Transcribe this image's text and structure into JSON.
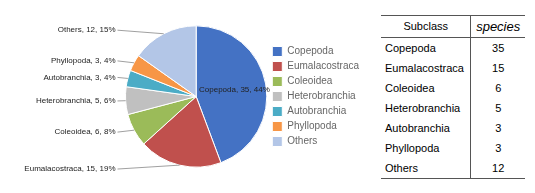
{
  "chart_data": [
    {
      "type": "pie",
      "categories": [
        "Copepoda",
        "Eumalacostraca",
        "Coleoidea",
        "Heterobranchia",
        "Autobranchia",
        "Phyllopoda",
        "Others"
      ],
      "values": [
        35,
        15,
        6,
        5,
        3,
        3,
        12
      ],
      "value_labels": [
        "Copepoda, 35, 44%",
        "Eumalacostraca, 15, 19%",
        "Coleoidea, 6, 8%",
        "Heterobranchia, 5, 6%",
        "Autobranchia, 3, 4%",
        "Phyllopoda, 3, 4%",
        "Others, 12, 15%"
      ],
      "colors": [
        "#4472c4",
        "#c0504d",
        "#9bbb59",
        "#c0c0c0",
        "#4bacc6",
        "#f79646",
        "#b3c6e7"
      ],
      "legend": "right"
    },
    {
      "type": "table",
      "columns": [
        "Subclass",
        "species"
      ],
      "rows": [
        [
          "Copepoda",
          35
        ],
        [
          "Eumalacostraca",
          15
        ],
        [
          "Coleoidea",
          6
        ],
        [
          "Heterobranchia",
          5
        ],
        [
          "Autobranchia",
          3
        ],
        [
          "Phyllopoda",
          3
        ],
        [
          "Others",
          12
        ]
      ]
    }
  ]
}
